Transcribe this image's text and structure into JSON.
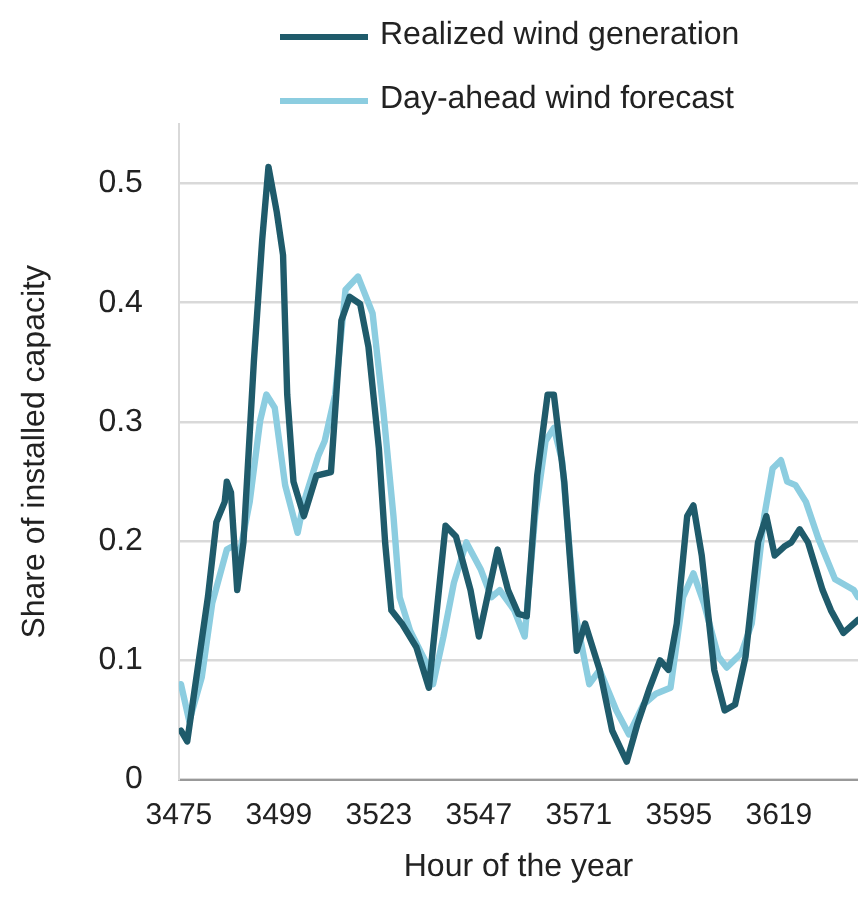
{
  "chart_data": {
    "type": "line",
    "xlabel": "Hour of the year",
    "ylabel": "Share of installed capacity",
    "xlim": [
      3475,
      3638
    ],
    "xticks": [
      3475,
      3499,
      3523,
      3547,
      3571,
      3595,
      3619
    ],
    "ylim": [
      0,
      0.55
    ],
    "yticks": [
      0,
      {
        "value": 0.1,
        "label": "0.1"
      },
      {
        "value": 0.2,
        "label": "0.2"
      },
      {
        "value": 0.3,
        "label": "0.3"
      },
      {
        "value": 0.4,
        "label": "0.4"
      },
      {
        "value": 0.5,
        "label": "0.5"
      }
    ],
    "grid": "y",
    "legend": "top",
    "marker": "none",
    "line_style": "solid",
    "series": [
      {
        "name": "Realized wind generation",
        "color": "#1f5b6b",
        "x": [
          3475.5,
          3477,
          3482,
          3484,
          3486,
          3486.5,
          3487.5,
          3489,
          3490.5,
          3493,
          3495,
          3496.5,
          3498.5,
          3500,
          3501,
          3502.5,
          3505,
          3508,
          3511.5,
          3514,
          3516,
          3518.5,
          3520.5,
          3523,
          3524.5,
          3526,
          3528.5,
          3532,
          3535,
          3539,
          3541.5,
          3545,
          3547,
          3551.5,
          3554,
          3556.5,
          3558.5,
          3561,
          3563.5,
          3565,
          3567.5,
          3570.5,
          3572.5,
          3576,
          3579,
          3582.5,
          3585,
          3588,
          3590.5,
          3592.5,
          3594.5,
          3597,
          3598.5,
          3600.5,
          3603.5,
          3606,
          3608.5,
          3611,
          3614,
          3616,
          3618,
          3620.5,
          3622,
          3624,
          3626,
          3629.5,
          3631.5,
          3634.5,
          3638
        ],
        "values": [
          0.041,
          0.032,
          0.154,
          0.216,
          0.233,
          0.25,
          0.241,
          0.159,
          0.199,
          0.351,
          0.453,
          0.514,
          0.476,
          0.44,
          0.323,
          0.25,
          0.221,
          0.255,
          0.258,
          0.385,
          0.405,
          0.399,
          0.363,
          0.278,
          0.199,
          0.142,
          0.131,
          0.111,
          0.077,
          0.213,
          0.204,
          0.159,
          0.12,
          0.193,
          0.159,
          0.139,
          0.137,
          0.255,
          0.323,
          0.323,
          0.25,
          0.108,
          0.131,
          0.092,
          0.041,
          0.015,
          0.046,
          0.077,
          0.1,
          0.092,
          0.131,
          0.221,
          0.23,
          0.188,
          0.092,
          0.058,
          0.063,
          0.103,
          0.199,
          0.221,
          0.188,
          0.196,
          0.199,
          0.21,
          0.199,
          0.159,
          0.142,
          0.123,
          0.134
        ]
      },
      {
        "name": "Day-ahead wind forecast",
        "color": "#8ccde0",
        "x": [
          3475.5,
          3477.5,
          3480.5,
          3483,
          3486.5,
          3488,
          3489.5,
          3492,
          3494.5,
          3496,
          3498,
          3500.5,
          3503.5,
          3505,
          3508.5,
          3510,
          3512.5,
          3515,
          3518,
          3521.5,
          3524,
          3526.5,
          3528,
          3530.5,
          3534.5,
          3536,
          3538.5,
          3541,
          3544,
          3547.5,
          3550,
          3552,
          3555.5,
          3558,
          3560.5,
          3563,
          3565,
          3567,
          3570,
          3573.5,
          3576,
          3580,
          3583,
          3586.5,
          3589.5,
          3593,
          3596,
          3598.5,
          3601,
          3604.5,
          3606.5,
          3610,
          3612.5,
          3615.5,
          3617.5,
          3619.5,
          3621,
          3623,
          3625.5,
          3628.5,
          3632.5,
          3637,
          3638
        ],
        "values": [
          0.08,
          0.049,
          0.086,
          0.148,
          0.193,
          0.196,
          0.188,
          0.233,
          0.301,
          0.323,
          0.312,
          0.247,
          0.207,
          0.233,
          0.272,
          0.284,
          0.323,
          0.411,
          0.422,
          0.391,
          0.312,
          0.221,
          0.153,
          0.125,
          0.097,
          0.08,
          0.12,
          0.165,
          0.199,
          0.176,
          0.153,
          0.159,
          0.142,
          0.12,
          0.221,
          0.284,
          0.295,
          0.267,
          0.142,
          0.08,
          0.092,
          0.058,
          0.038,
          0.063,
          0.072,
          0.077,
          0.153,
          0.173,
          0.148,
          0.103,
          0.094,
          0.106,
          0.131,
          0.221,
          0.261,
          0.268,
          0.25,
          0.247,
          0.233,
          0.202,
          0.168,
          0.159,
          0.153
        ]
      }
    ]
  }
}
